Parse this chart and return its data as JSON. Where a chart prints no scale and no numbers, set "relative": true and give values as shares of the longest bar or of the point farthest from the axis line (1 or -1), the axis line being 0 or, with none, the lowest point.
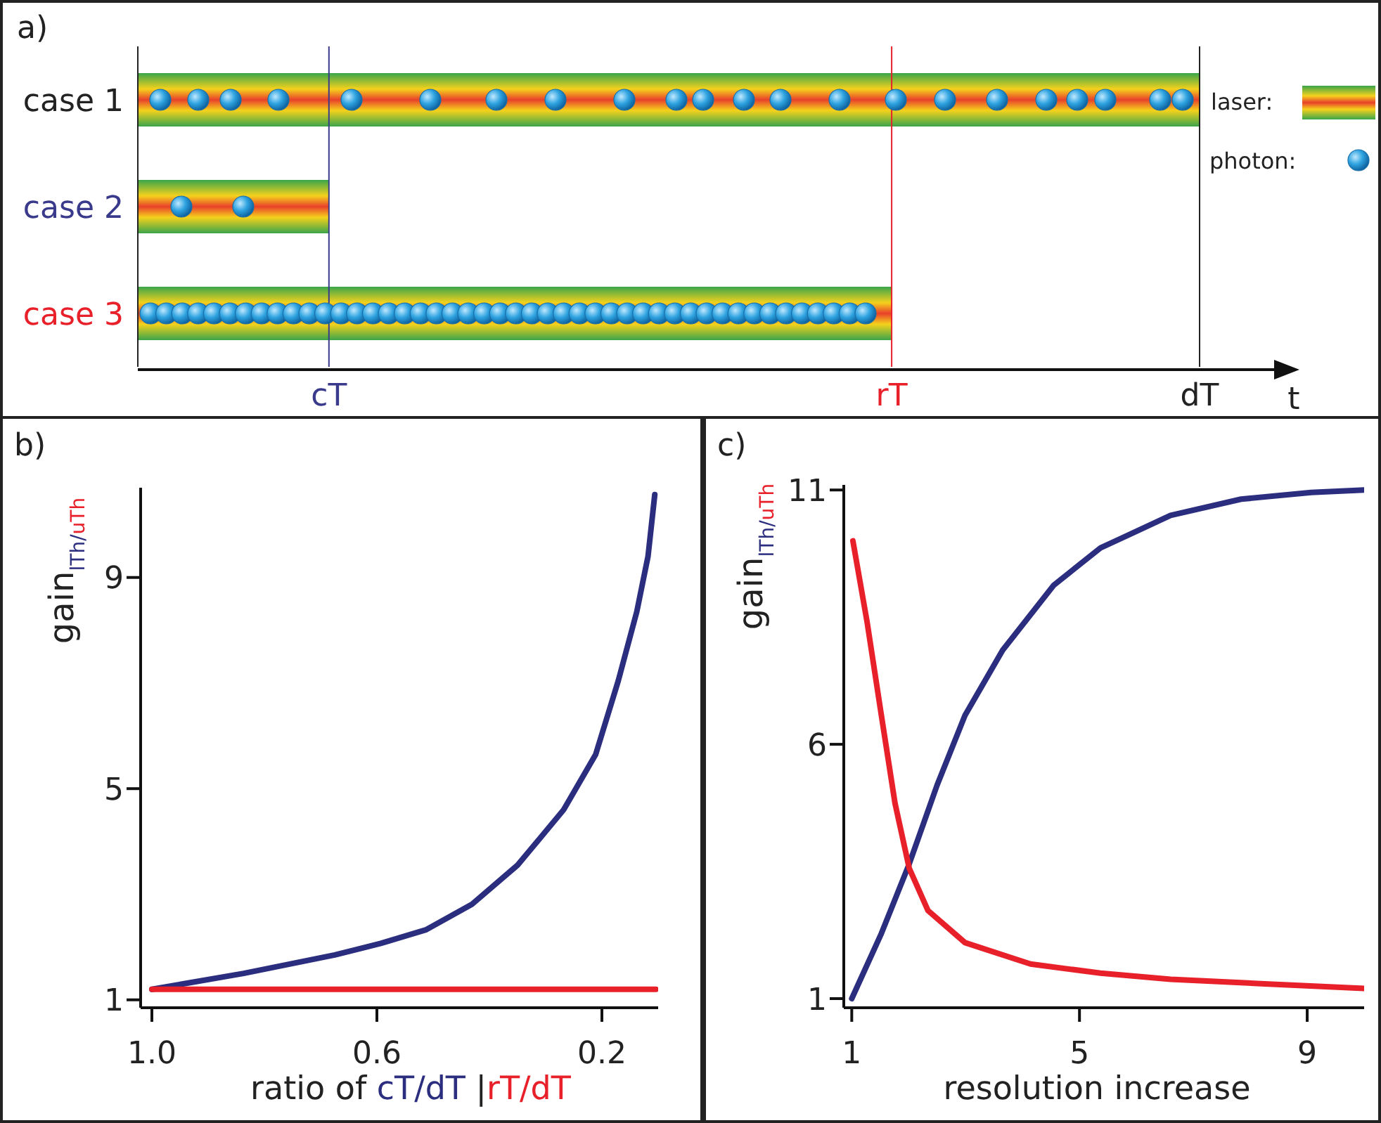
{
  "chart_data": [
    {
      "type": "bar",
      "title": "a)",
      "orientation": "horizontal",
      "relative": true,
      "categories": [
        "case 1",
        "case 2",
        "case 3"
      ],
      "values": [
        1,
        0.18,
        0.71
      ],
      "ref_lines": [
        {
          "axis": "x",
          "value": 0.18,
          "label": "cT",
          "color": "#3a3a8c"
        },
        {
          "axis": "x",
          "value": 0.71,
          "label": "rT",
          "color": "#e8202a"
        },
        {
          "axis": "x",
          "value": 1,
          "label": "dT",
          "color": "#222222"
        }
      ],
      "annotations": [
        "t",
        "laser:",
        "photon:"
      ]
    },
    {
      "type": "line",
      "title": "b)",
      "xlabel": "ratio of cT/dT |rT/dT",
      "ylabel": "gain$_{lTh/uTh}$",
      "xlim": [
        1.02,
        0.1
      ],
      "xticks": [
        {
          "value": 1,
          "label": "1.0"
        },
        0.6,
        0.2
      ],
      "ylim": [
        0.85,
        10.7
      ],
      "yticks": [
        1,
        5,
        9
      ],
      "series": [
        {
          "color": "#2b2e7e",
          "x": [
            1.0,
            0.837,
            0.675,
            0.593,
            0.512,
            0.431,
            0.35,
            0.268,
            0.211,
            0.171,
            0.138,
            0.118,
            0.106
          ],
          "values": [
            1.2,
            1.5,
            1.85,
            2.07,
            2.33,
            2.81,
            3.55,
            4.6,
            5.65,
            7.04,
            8.35,
            9.4,
            10.57
          ]
        },
        {
          "color": "#e8202a",
          "x": [
            1.0,
            0.55,
            0.104
          ],
          "values": [
            1.2,
            1.2,
            1.2
          ]
        }
      ]
    },
    {
      "type": "line",
      "title": "c)",
      "xlabel": "resolution increase",
      "ylabel": "gain$_{lTh/uTh}$",
      "xlim": [
        0.86,
        10
      ],
      "xticks": [
        1,
        5,
        9
      ],
      "ylim": [
        0.82,
        11.1
      ],
      "yticks": [
        1,
        6,
        11
      ],
      "series": [
        {
          "color": "#2b2e7e",
          "x": [
            1.0,
            1.52,
            2.01,
            2.5,
            2.99,
            3.65,
            4.55,
            5.37,
            6.6,
            7.84,
            9.07,
            10.0
          ],
          "values": [
            1.0,
            2.28,
            3.65,
            5.2,
            6.57,
            7.85,
            9.13,
            9.86,
            10.5,
            10.82,
            10.95,
            11.0
          ]
        },
        {
          "color": "#e8202a",
          "x": [
            1.02,
            1.27,
            1.52,
            1.76,
            2.01,
            2.34,
            2.99,
            4.14,
            5.37,
            6.6,
            8.25,
            10.0
          ],
          "values": [
            10.0,
            8.4,
            6.57,
            4.84,
            3.56,
            2.73,
            2.1,
            1.68,
            1.5,
            1.38,
            1.29,
            1.2
          ]
        }
      ]
    }
  ]
}
